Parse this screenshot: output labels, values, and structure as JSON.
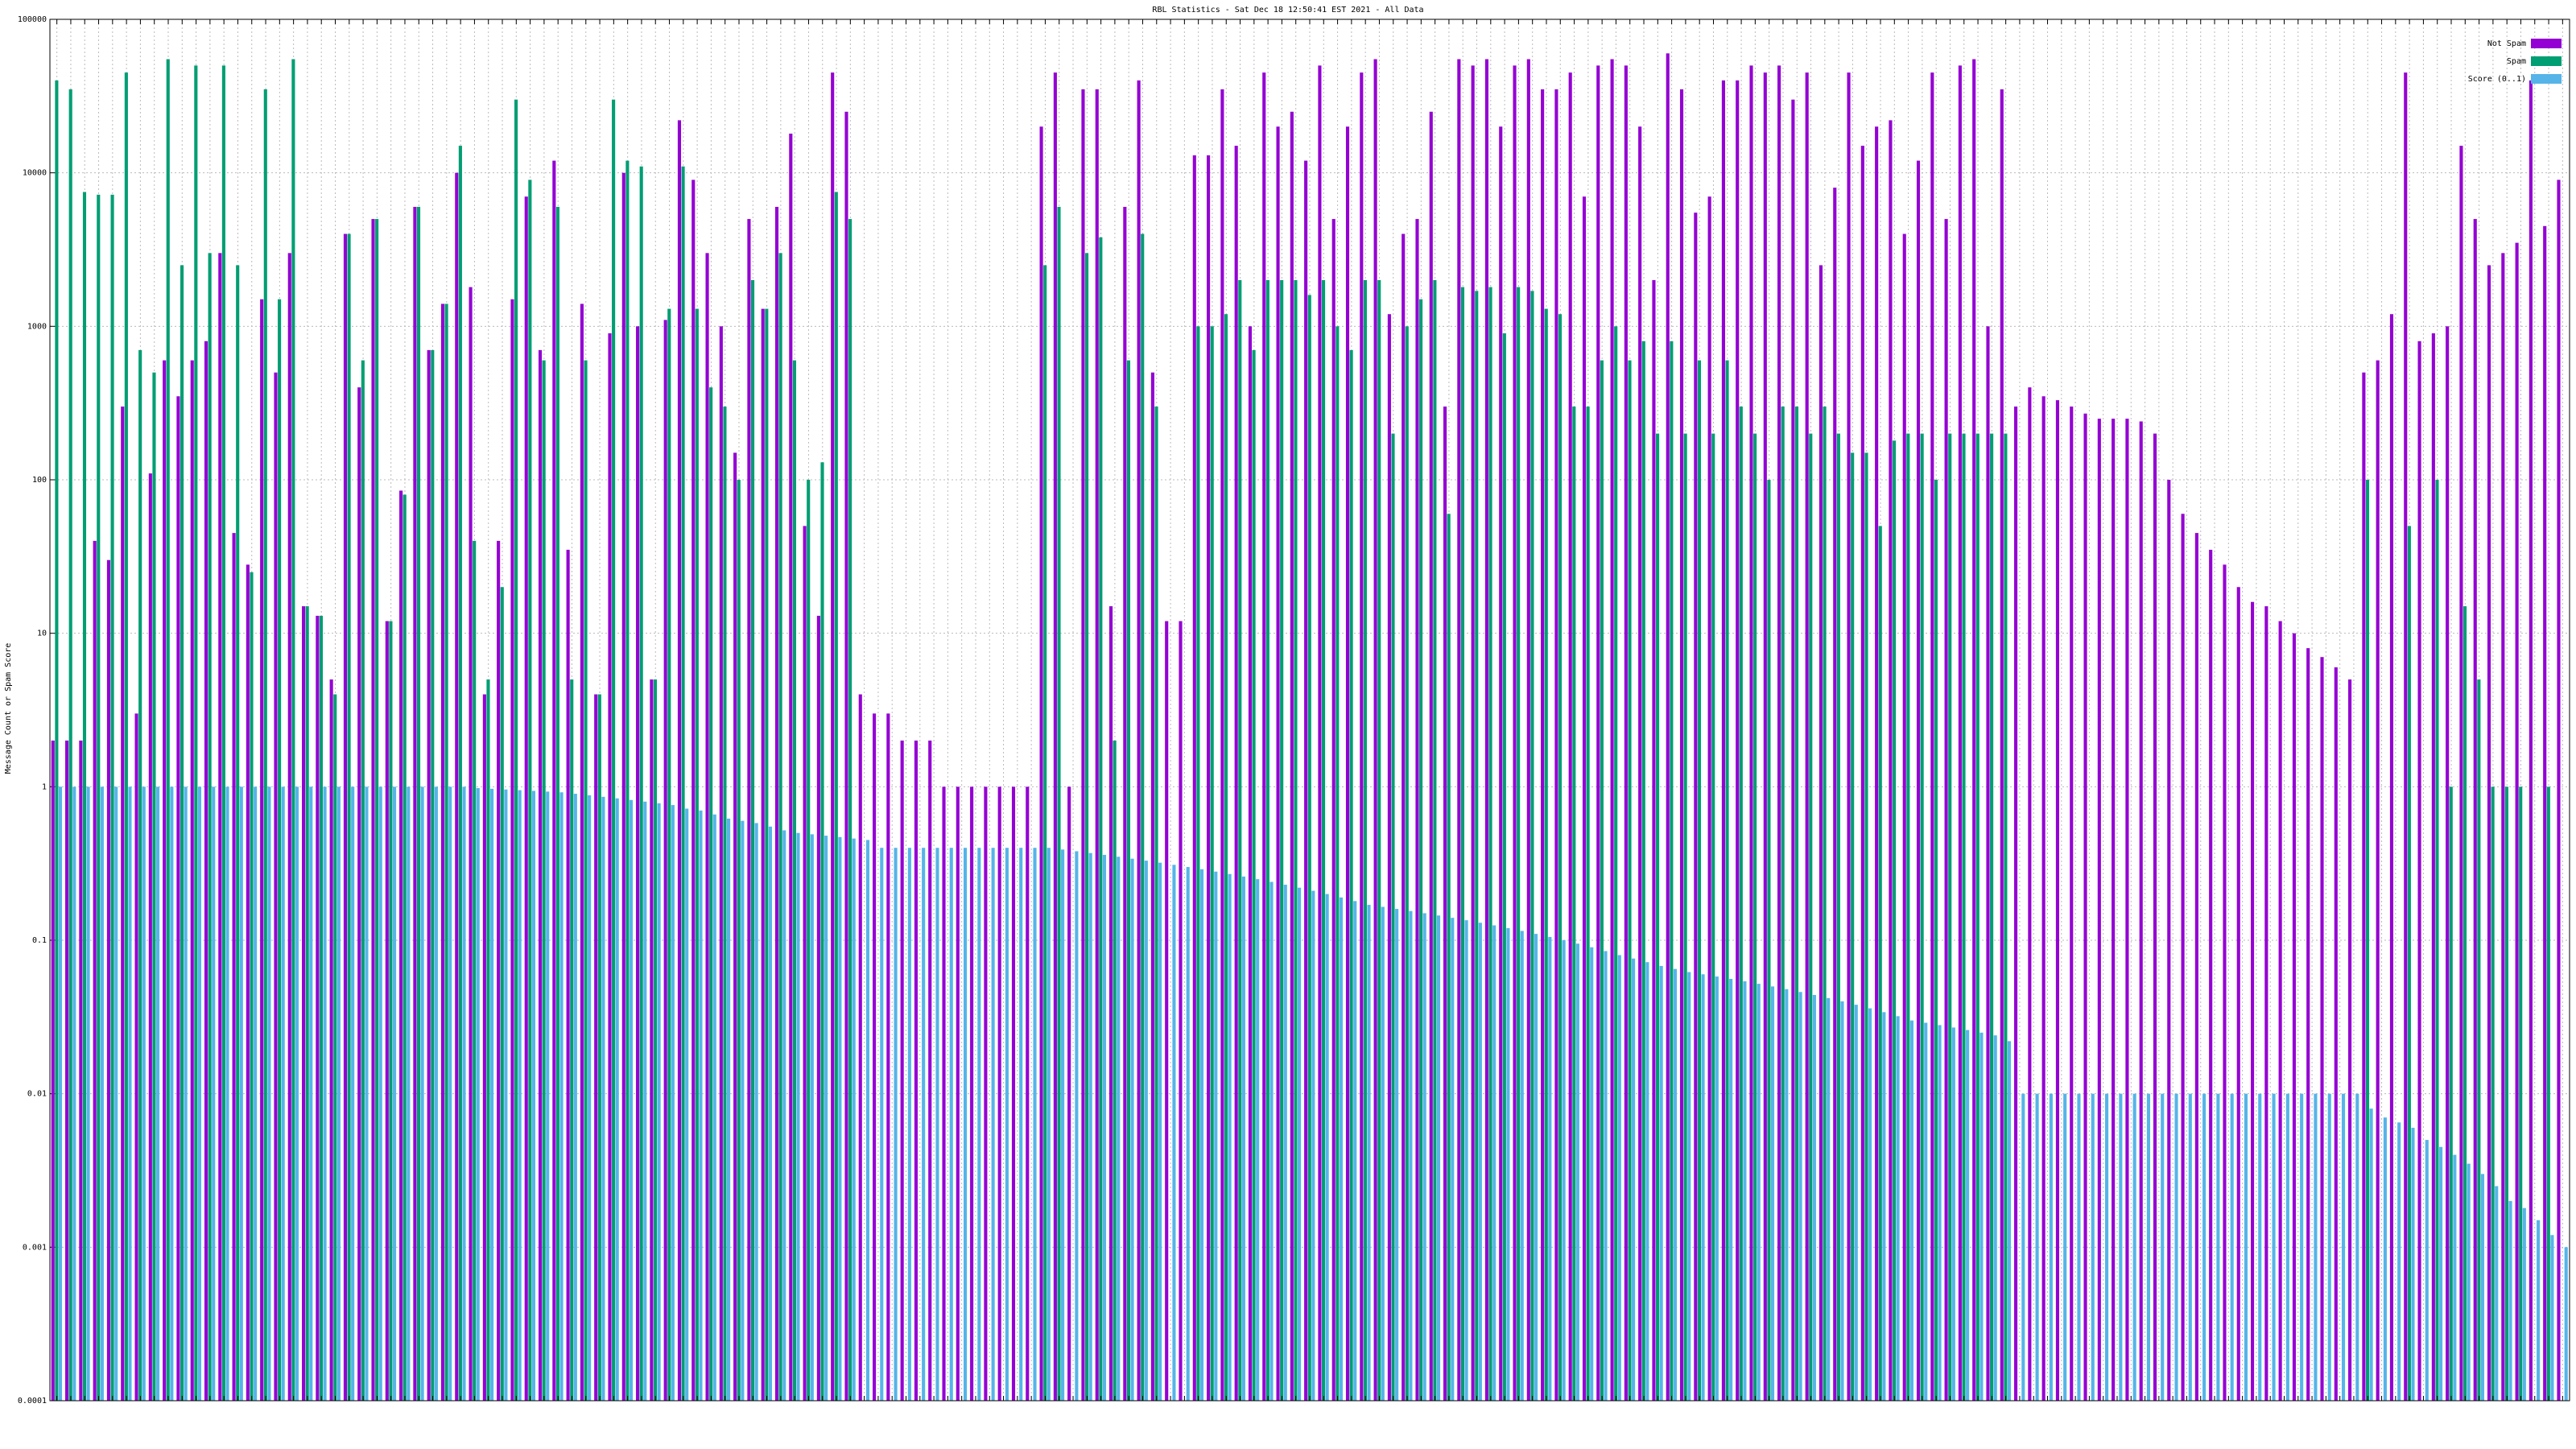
{
  "chart_data": {
    "type": "bar",
    "title": "RBL Statistics - Sat Dec 18 12:50:41 EST 2021 - All Data",
    "y_label": "Message Count or Spam Score",
    "log_scale": true,
    "grid": true,
    "legend": "top-right",
    "ylim": [
      0.0001,
      100000
    ],
    "yticks": [
      0.0001,
      0.001,
      0.01,
      0.1,
      1,
      10,
      100,
      1000,
      10000,
      100000
    ],
    "categories": [
      null,
      null,
      null,
      null,
      null,
      null,
      null,
      null,
      null,
      null,
      null,
      null,
      null,
      null,
      null,
      null,
      null,
      null,
      null,
      null,
      null,
      null,
      null,
      null,
      null,
      null,
      null,
      null,
      null,
      null,
      null,
      null,
      null,
      null,
      null,
      null,
      null,
      null,
      null,
      null,
      null,
      null,
      null,
      null,
      null,
      null,
      null,
      null,
      null,
      null,
      null,
      null,
      null,
      null,
      null,
      null,
      null,
      null,
      null,
      null,
      null,
      null,
      null,
      null,
      null,
      null,
      null,
      null,
      null,
      null,
      null,
      null,
      null,
      null,
      null,
      null,
      null,
      null,
      null,
      null,
      null,
      null,
      null,
      null,
      null,
      null,
      null,
      null,
      null,
      null,
      null,
      null,
      null,
      null,
      null,
      null,
      null,
      null,
      null,
      null,
      null,
      null,
      null,
      null,
      null,
      null,
      null,
      null,
      null,
      null,
      null,
      null,
      null,
      null,
      null,
      null,
      null,
      null,
      null,
      null,
      null,
      null,
      null,
      null,
      null,
      null,
      null,
      null,
      null,
      null,
      null,
      null,
      null,
      null,
      null,
      null,
      null,
      null,
      null,
      null,
      null,
      null,
      null,
      null,
      null,
      null,
      null,
      null,
      null,
      null,
      null,
      null,
      null,
      null,
      null,
      null,
      null,
      null,
      null,
      null,
      null,
      null,
      null,
      null,
      null,
      null,
      null,
      null,
      null,
      null,
      null,
      null,
      null,
      null,
      null,
      null,
      null,
      null,
      null,
      null,
      null
    ],
    "series": [
      {
        "name": "Not Spam",
        "color": "#9400d3",
        "values": [
          2,
          2,
          2,
          40,
          30,
          300,
          3,
          110,
          600,
          350,
          600,
          800,
          3000,
          45,
          28,
          1500,
          500,
          3000,
          15,
          13,
          5,
          4000,
          400,
          5000,
          12,
          85,
          6000,
          700,
          1400,
          10000,
          1800,
          4,
          40,
          1500,
          7000,
          700,
          12000,
          35,
          1400,
          4,
          900,
          10000,
          1000,
          5,
          1100,
          22000,
          9000,
          3000,
          1000,
          150,
          5000,
          1300,
          6000,
          18000,
          50,
          13,
          45000,
          25000,
          4,
          3,
          3,
          2,
          2,
          2,
          1,
          1,
          1,
          1,
          1,
          1,
          1,
          20000,
          45000,
          1,
          35000,
          35000,
          15,
          6000,
          40000,
          500,
          12,
          12,
          13000,
          13000,
          35000,
          15000,
          1000,
          45000,
          20000,
          25000,
          12000,
          50000,
          5000,
          20000,
          45000,
          55000,
          1200,
          4000,
          5000,
          25000,
          300,
          55000,
          50000,
          55000,
          20000,
          50000,
          55000,
          35000,
          35000,
          45000,
          7000,
          50000,
          55000,
          50000,
          20000,
          2000,
          60000,
          35000,
          5500,
          7000,
          40000,
          40000,
          50000,
          45000,
          50000,
          30000,
          45000,
          2500,
          8000,
          45000,
          15000,
          20000,
          22000,
          4000,
          12000,
          45000,
          5000,
          50000,
          55000,
          1000,
          35000,
          300,
          400,
          350,
          330,
          300,
          270,
          250,
          250,
          250,
          240,
          200,
          100,
          60,
          45,
          35,
          28,
          20,
          16,
          15,
          12,
          10,
          8,
          7,
          6,
          5,
          500,
          600,
          1200,
          45000,
          800,
          900,
          1000,
          15000,
          5000,
          2500,
          3000,
          3500,
          40000,
          4500,
          9000
        ]
      },
      {
        "name": "Spam",
        "color": "#009e73",
        "values": [
          40000,
          35000,
          7500,
          7200,
          7200,
          45000,
          700,
          500,
          55000,
          2500,
          50000,
          3000,
          50000,
          2500,
          25,
          35000,
          1500,
          55000,
          15,
          13,
          4,
          4000,
          600,
          5000,
          12,
          80,
          6000,
          700,
          1400,
          15000,
          40,
          5,
          20,
          30000,
          9000,
          600,
          6000,
          5,
          600,
          4,
          30000,
          12000,
          11000,
          5,
          1300,
          11000,
          1300,
          400,
          300,
          100,
          2000,
          1300,
          3000,
          600,
          100,
          130,
          7500,
          5000,
          null,
          null,
          null,
          null,
          null,
          null,
          null,
          null,
          null,
          null,
          null,
          null,
          null,
          2500,
          6000,
          null,
          3000,
          3800,
          2,
          600,
          4000,
          300,
          null,
          null,
          1000,
          1000,
          1200,
          2000,
          700,
          2000,
          2000,
          2000,
          1600,
          2000,
          1000,
          700,
          2000,
          2000,
          200,
          1000,
          1500,
          2000,
          60,
          1800,
          1700,
          1800,
          900,
          1800,
          1700,
          1300,
          1200,
          300,
          300,
          600,
          1000,
          600,
          800,
          200,
          800,
          200,
          600,
          200,
          600,
          300,
          200,
          100,
          300,
          300,
          200,
          300,
          200,
          150,
          150,
          50,
          180,
          200,
          200,
          100,
          200,
          200,
          200,
          200,
          200,
          null,
          null,
          null,
          null,
          null,
          null,
          null,
          null,
          null,
          null,
          null,
          null,
          null,
          null,
          null,
          null,
          null,
          null,
          null,
          null,
          null,
          null,
          null,
          null,
          null,
          100,
          null,
          null,
          50,
          null,
          100,
          1,
          15,
          5,
          1,
          1,
          1,
          null,
          1,
          null
        ]
      },
      {
        "name": "Score (0..1)",
        "color": "#56b4e9",
        "values": [
          1,
          1,
          1,
          1,
          1,
          1,
          1,
          1,
          1,
          1,
          1,
          1,
          1,
          1,
          1,
          1,
          1,
          1,
          1,
          1,
          1,
          1,
          1,
          1,
          1,
          1,
          1,
          1,
          1,
          1,
          0.98,
          0.97,
          0.96,
          0.95,
          0.94,
          0.93,
          0.92,
          0.9,
          0.88,
          0.86,
          0.84,
          0.82,
          0.8,
          0.78,
          0.76,
          0.72,
          0.7,
          0.66,
          0.62,
          0.6,
          0.58,
          0.55,
          0.52,
          0.5,
          0.49,
          0.48,
          0.47,
          0.46,
          0.45,
          0.4,
          0.4,
          0.4,
          0.4,
          0.4,
          0.4,
          0.4,
          0.4,
          0.4,
          0.4,
          0.4,
          0.4,
          0.4,
          0.39,
          0.38,
          0.37,
          0.36,
          0.35,
          0.34,
          0.33,
          0.32,
          0.31,
          0.3,
          0.29,
          0.28,
          0.27,
          0.26,
          0.25,
          0.24,
          0.23,
          0.22,
          0.21,
          0.2,
          0.19,
          0.18,
          0.17,
          0.165,
          0.16,
          0.155,
          0.15,
          0.145,
          0.14,
          0.135,
          0.13,
          0.125,
          0.12,
          0.115,
          0.11,
          0.105,
          0.1,
          0.095,
          0.09,
          0.085,
          0.08,
          0.076,
          0.072,
          0.068,
          0.065,
          0.062,
          0.06,
          0.058,
          0.056,
          0.054,
          0.052,
          0.05,
          0.048,
          0.046,
          0.044,
          0.042,
          0.04,
          0.038,
          0.036,
          0.034,
          0.032,
          0.03,
          0.029,
          0.028,
          0.027,
          0.026,
          0.025,
          0.024,
          0.022,
          0.01,
          0.01,
          0.01,
          0.01,
          0.01,
          0.01,
          0.01,
          0.01,
          0.01,
          0.01,
          0.01,
          0.01,
          0.01,
          0.01,
          0.01,
          0.01,
          0.01,
          0.01,
          0.01,
          0.01,
          0.01,
          0.01,
          0.01,
          0.01,
          0.01,
          0.008,
          0.007,
          0.0065,
          0.006,
          0.005,
          0.0045,
          0.004,
          0.0035,
          0.003,
          0.0025,
          0.002,
          0.0018,
          0.0015,
          0.0012,
          0.001
        ]
      }
    ]
  }
}
